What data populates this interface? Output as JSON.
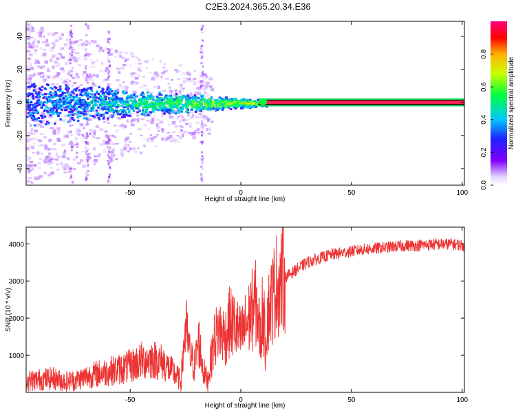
{
  "title": "C2E3.2024.365.20.34.E36",
  "colors": {
    "snr_line": "#ee3333",
    "center_line": "#000000"
  },
  "chart_data": [
    {
      "type": "heatmap",
      "xlabel": "Height of straight line (km)",
      "ylabel": "Frequency (Hz)",
      "xlim": [
        -97,
        101
      ],
      "ylim": [
        -50,
        49
      ],
      "xticks": [
        -50,
        0,
        50,
        100
      ],
      "yticks": [
        -40,
        -20,
        0,
        20,
        40
      ],
      "colorbar": {
        "label": "Normalized spectral amplitude",
        "range": [
          0,
          1
        ],
        "ticks": [
          "0.0",
          "0.2",
          "0.4",
          "0.6",
          "0.8"
        ],
        "colormap": "rainbow (violet-blue-cyan-green-yellow-red-magenta)"
      },
      "description_values": {
        "carrier_frequency_hz": 0,
        "noisy_spread_below_km": -15,
        "stable_tone_above_km": 12
      }
    },
    {
      "type": "line",
      "xlabel": "Height of straight line (km)",
      "ylabel": "SNR (10 * v/v)",
      "xlim": [
        -97,
        101
      ],
      "ylim": [
        0,
        4450
      ],
      "xticks": [
        -50,
        0,
        50,
        100
      ],
      "yticks": [
        1000,
        2000,
        3000,
        4000
      ],
      "series": [
        {
          "x": [
            -97,
            -90,
            -85,
            -80,
            -75,
            -70,
            -65,
            -60,
            -55,
            -50,
            -45,
            -40,
            -35,
            -30,
            -27,
            -25,
            -23,
            -21,
            -19,
            -17,
            -15,
            -12,
            -10,
            -7,
            -5,
            -3,
            0,
            3,
            5,
            7,
            9,
            10,
            11,
            12,
            14,
            16,
            20,
            25,
            30,
            35,
            40,
            45,
            50,
            55,
            60,
            65,
            70,
            75,
            80,
            85,
            90,
            95,
            101
          ],
          "y": [
            300,
            350,
            380,
            300,
            320,
            420,
            500,
            560,
            620,
            700,
            850,
            900,
            800,
            500,
            300,
            1800,
            1000,
            700,
            1400,
            600,
            300,
            1400,
            1700,
            1500,
            1900,
            1800,
            1500,
            1900,
            2200,
            2400,
            1400,
            2500,
            1200,
            2100,
            2500,
            2900,
            3100,
            3300,
            3500,
            3600,
            3700,
            3750,
            3800,
            3850,
            3870,
            3900,
            3930,
            3950,
            3960,
            3980,
            3990,
            4000,
            3950
          ]
        }
      ]
    }
  ]
}
